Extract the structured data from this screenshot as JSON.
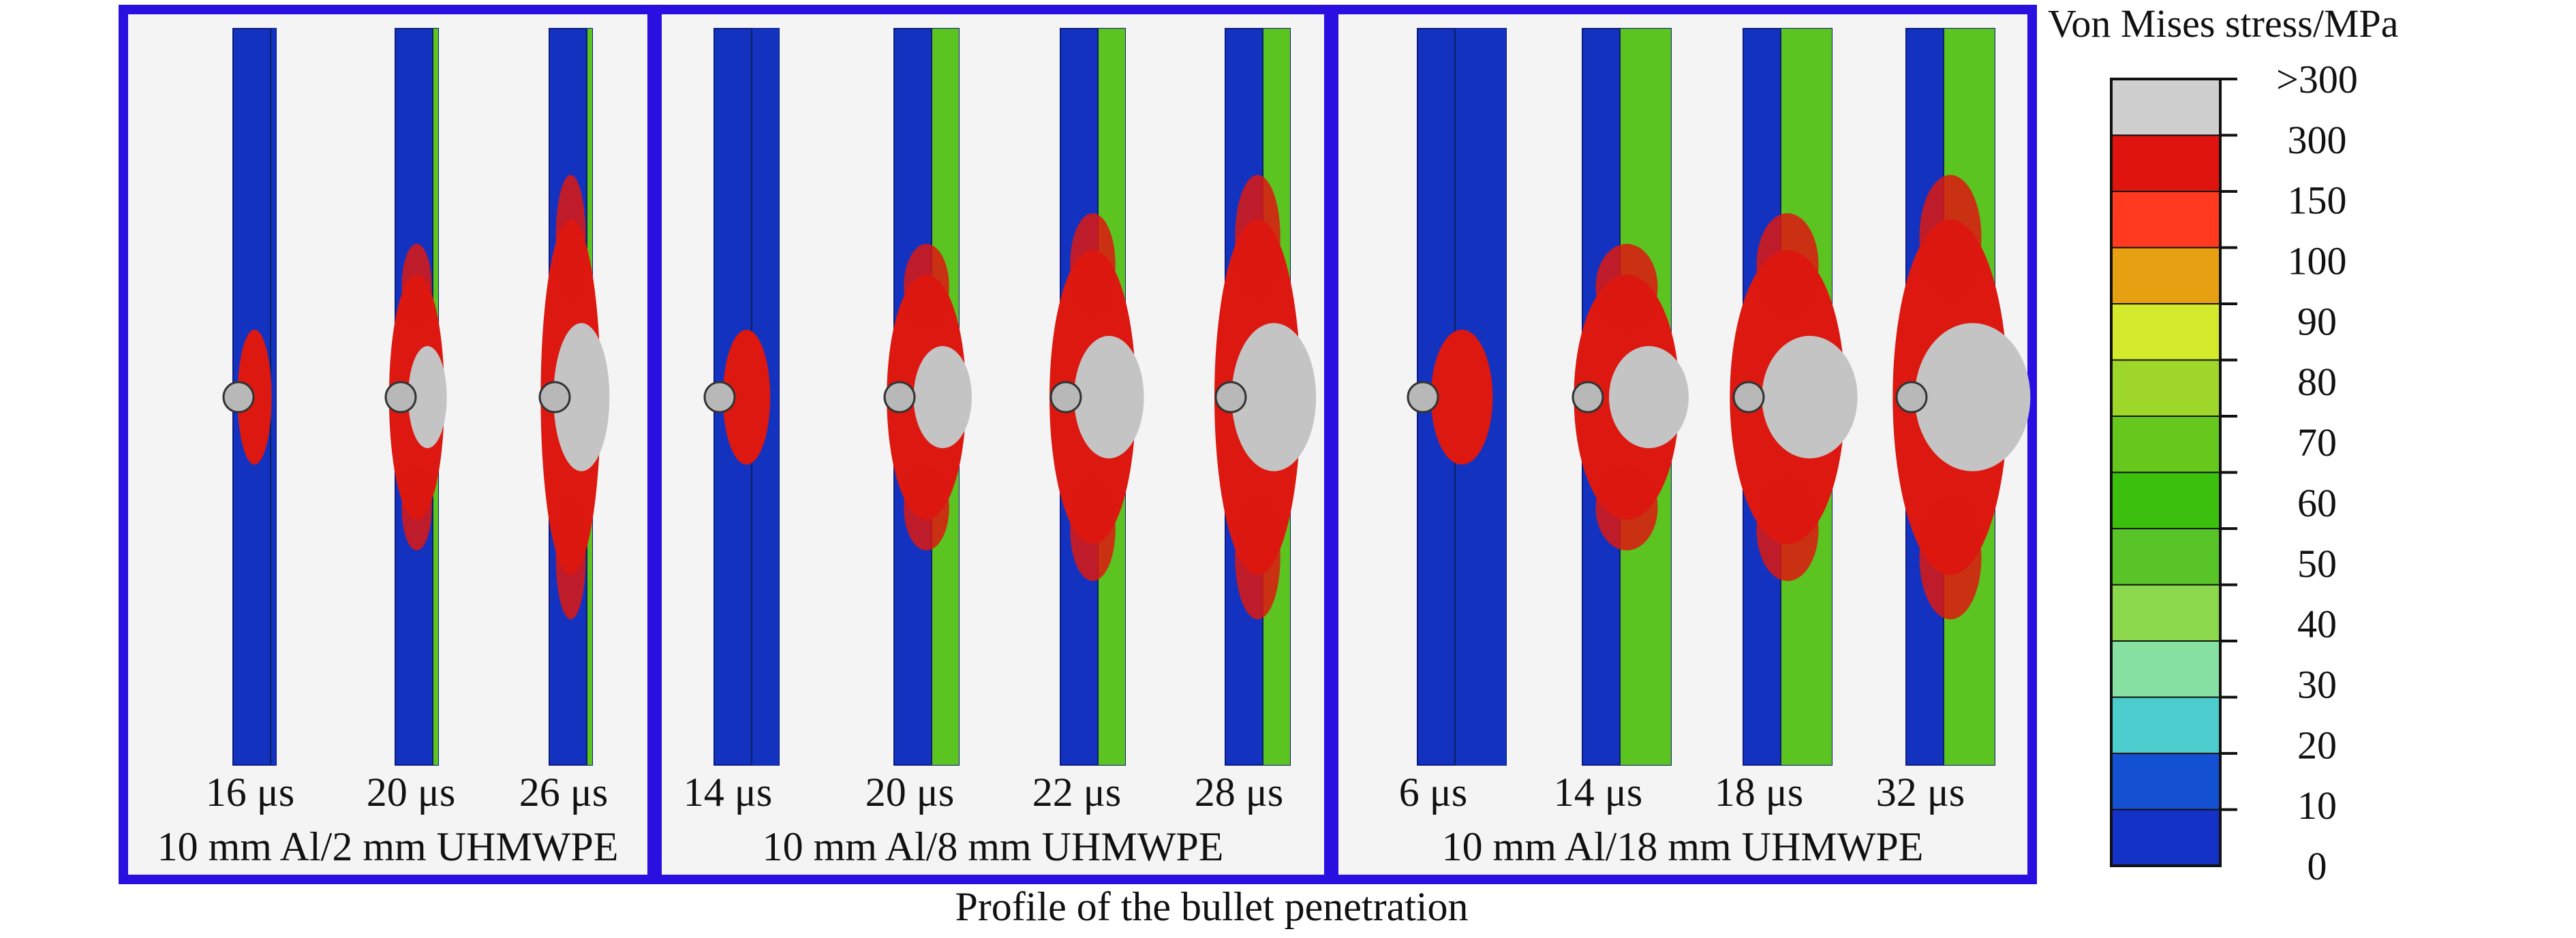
{
  "panels": [
    {
      "label": "10 mm Al/2 mm UHMWPE",
      "frames": [
        {
          "time": "16 μs",
          "stage": "impact",
          "uhmwpe_mm": 2
        },
        {
          "time": "20 μs",
          "stage": "early",
          "uhmwpe_mm": 2
        },
        {
          "time": "26 μs",
          "stage": "late",
          "uhmwpe_mm": 2
        }
      ]
    },
    {
      "label": "10 mm Al/8 mm UHMWPE",
      "frames": [
        {
          "time": "14 μs",
          "stage": "impact",
          "uhmwpe_mm": 8
        },
        {
          "time": "20 μs",
          "stage": "early",
          "uhmwpe_mm": 8
        },
        {
          "time": "22 μs",
          "stage": "mid",
          "uhmwpe_mm": 8
        },
        {
          "time": "28 μs",
          "stage": "late",
          "uhmwpe_mm": 8
        }
      ]
    },
    {
      "label": "10 mm Al/18 mm UHMWPE",
      "frames": [
        {
          "time": "6 μs",
          "stage": "impact",
          "uhmwpe_mm": 18
        },
        {
          "time": "14 μs",
          "stage": "early",
          "uhmwpe_mm": 18
        },
        {
          "time": "18 μs",
          "stage": "mid",
          "uhmwpe_mm": 18
        },
        {
          "time": "32 μs",
          "stage": "late",
          "uhmwpe_mm": 18
        }
      ]
    }
  ],
  "caption": "Profile of the  bullet penetration",
  "legend": {
    "title": "Von Mises stress/MPa",
    "labels": [
      ">300",
      "300",
      "150",
      "100",
      "90",
      "80",
      "70",
      "60",
      "50",
      "40",
      "30",
      "20",
      "10",
      "0"
    ],
    "colors": [
      "#cfcfcf",
      "#e0140f",
      "#ff3a1e",
      "#e6a012",
      "#d4ea2c",
      "#9ed62a",
      "#66c81c",
      "#3cc00e",
      "#58c428",
      "#8cd84c",
      "#86e0a2",
      "#4ccccc",
      "#1450d2",
      "#1432c6"
    ]
  },
  "colors": {
    "frame_border": "#2a10e0",
    "al_plate": "#1432c0",
    "stress_red": "#dc1810",
    "stress_green": "#5cc420",
    "penetration_grey": "#c4c4c4"
  }
}
